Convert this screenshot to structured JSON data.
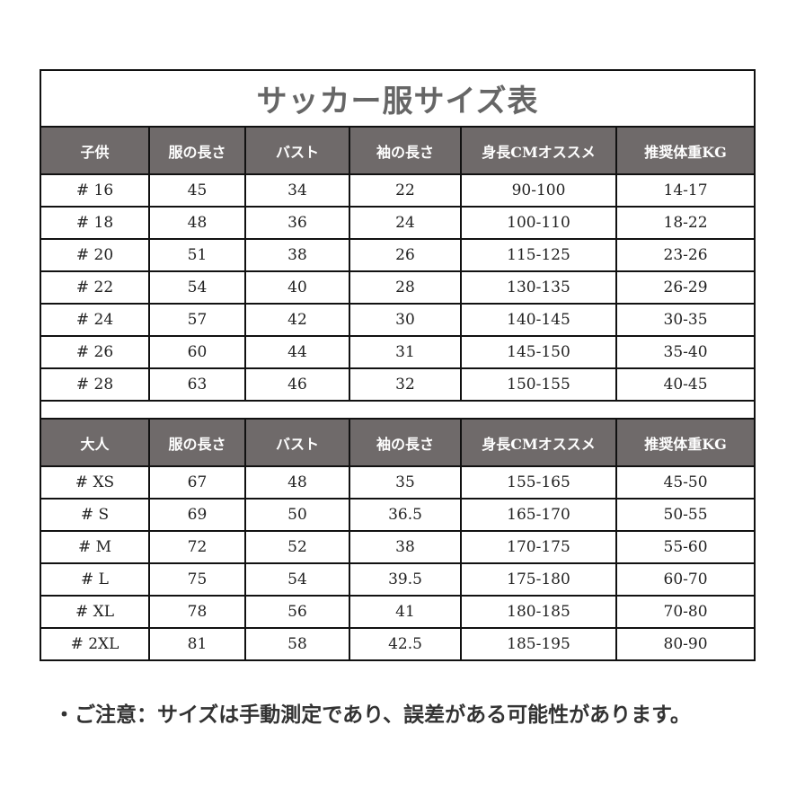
{
  "title": "サッカー服サイズ表",
  "kids": {
    "headers": [
      "子供",
      "服の長さ",
      "バスト",
      "袖の長さ",
      "身長CMオススメ",
      "推奨体重KG"
    ],
    "rows": [
      [
        "# 16",
        "45",
        "34",
        "22",
        "90-100",
        "14-17"
      ],
      [
        "# 18",
        "48",
        "36",
        "24",
        "100-110",
        "18-22"
      ],
      [
        "# 20",
        "51",
        "38",
        "26",
        "115-125",
        "23-26"
      ],
      [
        "# 22",
        "54",
        "40",
        "28",
        "130-135",
        "26-29"
      ],
      [
        "# 24",
        "57",
        "42",
        "30",
        "140-145",
        "30-35"
      ],
      [
        "# 26",
        "60",
        "44",
        "31",
        "145-150",
        "35-40"
      ],
      [
        "# 28",
        "63",
        "46",
        "32",
        "150-155",
        "40-45"
      ]
    ]
  },
  "adults": {
    "headers": [
      "大人",
      "服の長さ",
      "バスト",
      "袖の長さ",
      "身長CMオススメ",
      "推奨体重KG"
    ],
    "rows": [
      [
        "# XS",
        "67",
        "48",
        "35",
        "155-165",
        "45-50"
      ],
      [
        "# S",
        "69",
        "50",
        "36.5",
        "165-170",
        "50-55"
      ],
      [
        "# M",
        "72",
        "52",
        "38",
        "170-175",
        "55-60"
      ],
      [
        "# L",
        "75",
        "54",
        "39.5",
        "175-180",
        "60-70"
      ],
      [
        "# XL",
        "78",
        "56",
        "41",
        "180-185",
        "70-80"
      ],
      [
        "# 2XL",
        "81",
        "58",
        "42.5",
        "185-195",
        "80-90"
      ]
    ]
  },
  "note": "・ご注意：サイズは手動測定であり、誤差がある可能性があります。",
  "colors": {
    "header_bg": "#6f6a6a",
    "title": "#666666"
  }
}
